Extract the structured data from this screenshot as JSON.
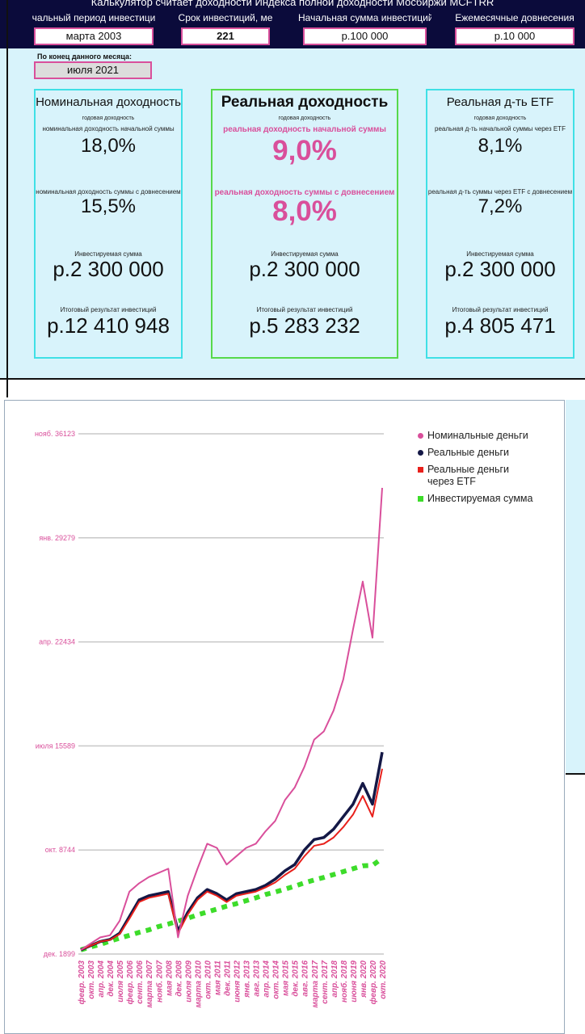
{
  "header": {
    "title": "Калькулятор считает доходности Индекса полной доходности Мосбиржи MCFTRR",
    "fields": [
      {
        "label": "чальный период инвестици",
        "value": "марта 2003"
      },
      {
        "label": "Срок инвестиций, ме",
        "value": "221"
      },
      {
        "label": "Начальная сумма инвестиций",
        "value": "р.100 000"
      },
      {
        "label": "Ежемесячные довнесения",
        "value": "р.10 000"
      }
    ],
    "end_label": "По конец данного месяца:",
    "end_value": "июля 2021"
  },
  "cards": [
    {
      "title": "Номинальная доходность",
      "subtitle": "годовая доходность",
      "label1": "номинальная доходность начальной суммы",
      "value1": "18,0%",
      "label2": "номинальная доходность суммы с довнесением",
      "value2": "15,5%",
      "invested_label": "Инвестируемая сумма",
      "invested_value": "р.2 300 000",
      "result_label": "Итоговый результат инвестиций",
      "result_value": "р.12 410 948"
    },
    {
      "title": "Реальная доходность",
      "subtitle": "годовая доходность",
      "label1": "реальная доходность начальной суммы",
      "value1": "9,0%",
      "label2": "реальная доходность суммы с довнесением",
      "value2": "8,0%",
      "invested_label": "Инвестируемая сумма",
      "invested_value": "р.2 300 000",
      "result_label": "Итоговый результат инвестиций",
      "result_value": "р.5 283 232"
    },
    {
      "title": "Реальная д-ть ETF",
      "subtitle": "годовая доходность",
      "label1": "реальная д-ть начальной суммы через ETF",
      "value1": "8,1%",
      "label2": "реальная д-ть суммы через ETF с довнесением",
      "value2": "7,2%",
      "invested_label": "Инвестируемая сумма",
      "invested_value": "р.2 300 000",
      "result_label": "Итоговый результат инвестиций",
      "result_value": "р.4 805 471"
    }
  ],
  "chart_data": {
    "type": "line",
    "categories": [
      "февр. 2003",
      "окт. 2003",
      "апр. 2004",
      "дек. 2004",
      "июля 2005",
      "февр. 2006",
      "сент. 2006",
      "марта 2007",
      "нояб. 2007",
      "мая 2008",
      "дек. 2008",
      "июля 2009",
      "марта 2010",
      "окт. 2010",
      "мая 2011",
      "дек. 2011",
      "июня 2012",
      "янв. 2013",
      "авг. 2013",
      "апр. 2014",
      "окт. 2014",
      "мая 2015",
      "дек. 2015",
      "авг. 2016",
      "марта 2017",
      "сент. 2017",
      "апр. 2018",
      "нояб. 2018",
      "июня 2019",
      "янв. 2020",
      "февр. 2020",
      "окт. 2020"
    ],
    "series": [
      {
        "name": "Номинальные деньги",
        "color": "#d94f9b",
        "values": [
          100000,
          250000,
          400000,
          450000,
          800000,
          1500000,
          1700000,
          1850000,
          1950000,
          2050000,
          400000,
          1400000,
          2050000,
          2650000,
          2550000,
          2150000,
          2350000,
          2550000,
          2650000,
          2950000,
          3200000,
          3700000,
          4000000,
          4500000,
          5150000,
          5350000,
          5850000,
          6600000,
          7800000,
          8950000,
          7600000,
          11200000
        ]
      },
      {
        "name": "Реальные деньги",
        "color": "#141846",
        "values": [
          100000,
          200000,
          300000,
          350000,
          500000,
          900000,
          1300000,
          1400000,
          1450000,
          1500000,
          550000,
          1000000,
          1350000,
          1550000,
          1450000,
          1300000,
          1450000,
          1500000,
          1550000,
          1650000,
          1800000,
          2000000,
          2150000,
          2500000,
          2750000,
          2800000,
          3000000,
          3300000,
          3600000,
          4100000,
          3600000,
          4850000
        ]
      },
      {
        "name": "Реальные деньги через ETF",
        "color": "#e8201b",
        "values": [
          100000,
          200000,
          300000,
          340000,
          480000,
          850000,
          1250000,
          1350000,
          1400000,
          1450000,
          500000,
          950000,
          1300000,
          1500000,
          1400000,
          1250000,
          1400000,
          1450000,
          1500000,
          1600000,
          1720000,
          1900000,
          2050000,
          2350000,
          2600000,
          2650000,
          2800000,
          3050000,
          3350000,
          3800000,
          3300000,
          4450000
        ]
      },
      {
        "name": "Инвестируемая сумма",
        "color": "#3ddc2a",
        "values": [
          100000,
          170000,
          230000,
          310000,
          380000,
          450000,
          520000,
          580000,
          660000,
          720000,
          790000,
          860000,
          940000,
          1010000,
          1080000,
          1150000,
          1210000,
          1280000,
          1350000,
          1430000,
          1490000,
          1560000,
          1630000,
          1710000,
          1780000,
          1840000,
          1910000,
          1980000,
          2050000,
          2120000,
          2130000,
          2300000
        ]
      }
    ],
    "ylim": [
      0,
      12500000
    ],
    "yticks": [
      {
        "value": 0,
        "label": "дек. 1899"
      },
      {
        "value": 2500000,
        "label": "окт. 8744"
      },
      {
        "value": 5000000,
        "label": "июля 15589"
      },
      {
        "value": 7500000,
        "label": "апр. 22434"
      },
      {
        "value": 10000000,
        "label": "янв. 29279"
      },
      {
        "value": 12500000,
        "label": "нояб. 36123"
      }
    ],
    "grid": true,
    "legend": "right"
  }
}
